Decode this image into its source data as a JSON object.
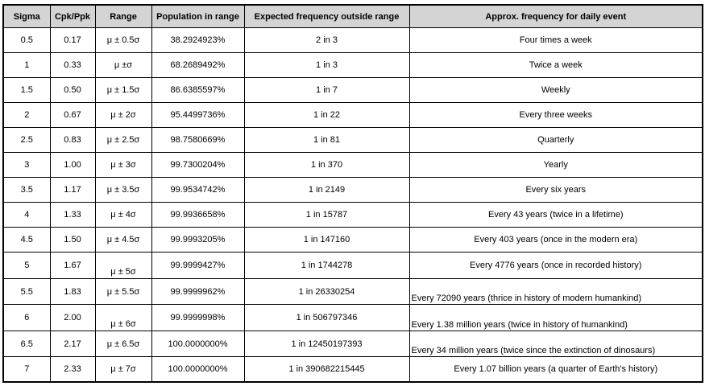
{
  "table": {
    "headers": [
      "Sigma",
      "Cpk/Ppk",
      "Range",
      "Population in range",
      "Expected frequency outside range",
      "Approx. frequency for daily event"
    ],
    "rows": [
      {
        "sigma": "0.5",
        "cpk": "0.17",
        "range": "μ ± 0.5σ",
        "population": "38.2924923%",
        "outside": "2 in 3",
        "event": "Four times a week"
      },
      {
        "sigma": "1",
        "cpk": "0.33",
        "range": "μ ±σ",
        "population": "68.2689492%",
        "outside": "1 in 3",
        "event": "Twice a week"
      },
      {
        "sigma": "1.5",
        "cpk": "0.50",
        "range": "μ ± 1.5σ",
        "population": "86.6385597%",
        "outside": "1 in 7",
        "event": "Weekly"
      },
      {
        "sigma": "2",
        "cpk": "0.67",
        "range": "μ ± 2σ",
        "population": "95.4499736%",
        "outside": "1 in 22",
        "event": "Every three weeks"
      },
      {
        "sigma": "2.5",
        "cpk": "0.83",
        "range": "μ ± 2.5σ",
        "population": "98.7580669%",
        "outside": "1 in 81",
        "event": "Quarterly"
      },
      {
        "sigma": "3",
        "cpk": "1.00",
        "range": "μ ± 3σ",
        "population": "99.7300204%",
        "outside": "1 in 370",
        "event": "Yearly"
      },
      {
        "sigma": "3.5",
        "cpk": "1.17",
        "range": "μ ± 3.5σ",
        "population": "99.9534742%",
        "outside": "1 in 2149",
        "event": "Every six years"
      },
      {
        "sigma": "4",
        "cpk": "1.33",
        "range": "μ ± 4σ",
        "population": "99.9936658%",
        "outside": "1 in 15787",
        "event": "Every 43 years (twice in a lifetime)"
      },
      {
        "sigma": "4.5",
        "cpk": "1.50",
        "range": "μ ± 4.5σ",
        "population": "99.9993205%",
        "outside": "1 in 147160",
        "event": "Every 403 years (once in the modern era)"
      },
      {
        "sigma": "5",
        "cpk": "1.67",
        "range": "μ ± 5σ",
        "population": "99.9999427%",
        "outside": "1 in 1744278",
        "event": "Every 4776 years (once in recorded history)"
      },
      {
        "sigma": "5.5",
        "cpk": "1.83",
        "range": "μ ± 5.5σ",
        "population": "99.9999962%",
        "outside": "1 in 26330254",
        "event": "Every 72090 years (thrice in history of modern humankind)"
      },
      {
        "sigma": "6",
        "cpk": "2.00",
        "range": "μ ± 6σ",
        "population": "99.9999998%",
        "outside": "1 in 506797346",
        "event": "Every 1.38 million years (twice in history of humankind)"
      },
      {
        "sigma": "6.5",
        "cpk": "2.17",
        "range": "μ ± 6.5σ",
        "population": "100.0000000%",
        "outside": "1 in 12450197393",
        "event": "Every 34 million years (twice since the extinction of dinosaurs)"
      },
      {
        "sigma": "7",
        "cpk": "2.33",
        "range": "μ ± 7σ",
        "population": "100.0000000%",
        "outside": "1 in 390682215445",
        "event": "Every 1.07 billion years (a quarter of Earth's history)"
      }
    ]
  },
  "colors": {
    "header_bg": "#d4d4d4",
    "border": "#000000",
    "text": "#000000"
  }
}
